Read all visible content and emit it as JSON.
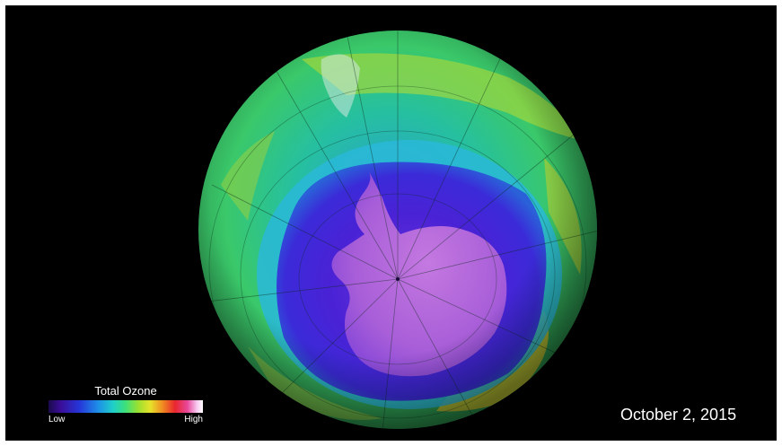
{
  "legend": {
    "title": "Total Ozone",
    "low_label": "Low",
    "high_label": "High"
  },
  "date": "October 2, 2015",
  "colors": {
    "background": "#000000",
    "ozone_hole": "#3b1ed0",
    "ozone_hole_core": "#b070d8",
    "mid_ozone": "#34c878",
    "high_ozone": "#c8d22a",
    "antarctica": "#d890e8"
  }
}
